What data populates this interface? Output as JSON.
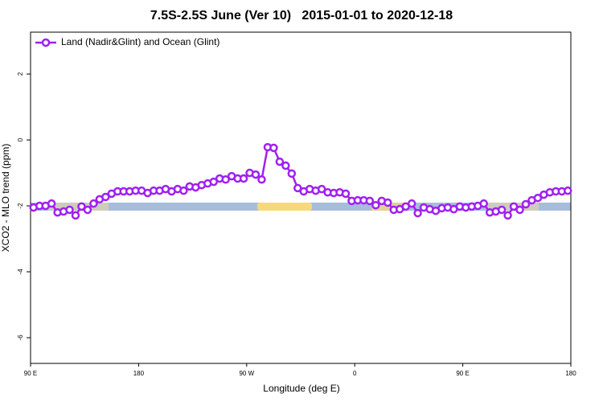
{
  "chart_data": {
    "type": "line",
    "title": "7.5S-2.5S June (Ver 10)   2015-01-01 to 2020-12-18",
    "x_label": "Longitude (deg E)",
    "y_label": "XCO2 - MLO trend (ppm)",
    "x": [
      92.5,
      97.5,
      102.5,
      107.5,
      112.5,
      117.5,
      122.5,
      127.5,
      132.5,
      137.5,
      142.5,
      147.5,
      152.5,
      157.5,
      162.5,
      167.5,
      172.5,
      177.5,
      182.5,
      187.5,
      192.5,
      197.5,
      202.5,
      207.5,
      212.5,
      217.5,
      222.5,
      227.5,
      232.5,
      237.5,
      242.5,
      247.5,
      252.5,
      257.5,
      262.5,
      267.5,
      272.5,
      277.5,
      282.5,
      287.5,
      292.5,
      297.5,
      302.5,
      307.5,
      312.5,
      317.5,
      322.5,
      327.5,
      332.5,
      337.5,
      342.5,
      347.5,
      352.5,
      357.5,
      362.5,
      367.5,
      372.5,
      377.5,
      382.5,
      387.5,
      392.5,
      397.5,
      402.5,
      407.5,
      412.5,
      417.5,
      422.5,
      427.5,
      432.5,
      437.5,
      442.5,
      447.5,
      452.5,
      457.5,
      462.5,
      467.5,
      472.5,
      477.5,
      482.5,
      487.5,
      492.5,
      497.5,
      502.5,
      507.5,
      512.5,
      517.5,
      522.5,
      527.5,
      532.5,
      537.5
    ],
    "series": [
      {
        "name": "Land (Nadir&Glint) and Ocean (Glint)",
        "color": "#a020f0",
        "values": [
          -2.05,
          -2.0,
          -2.0,
          -1.93,
          -2.2,
          -2.17,
          -2.12,
          -2.29,
          -2.02,
          -2.12,
          -1.93,
          -1.8,
          -1.73,
          -1.63,
          -1.56,
          -1.56,
          -1.56,
          -1.54,
          -1.54,
          -1.61,
          -1.54,
          -1.54,
          -1.49,
          -1.56,
          -1.49,
          -1.54,
          -1.41,
          -1.44,
          -1.37,
          -1.32,
          -1.27,
          -1.17,
          -1.2,
          -1.1,
          -1.17,
          -1.17,
          -1.0,
          -1.05,
          -1.2,
          -0.22,
          -0.24,
          -0.66,
          -0.78,
          -1.02,
          -1.46,
          -1.56,
          -1.49,
          -1.54,
          -1.49,
          -1.59,
          -1.61,
          -1.59,
          -1.63,
          -1.85,
          -1.83,
          -1.83,
          -1.85,
          -1.98,
          -1.85,
          -1.9,
          -2.12,
          -2.1,
          -2.02,
          -1.93,
          -2.22,
          -2.05,
          -2.1,
          -2.15,
          -2.07,
          -2.05,
          -2.1,
          -2.02,
          -2.05,
          -2.02,
          -2.0,
          -1.93,
          -2.2,
          -2.17,
          -2.12,
          -2.29,
          -2.02,
          -2.12,
          -1.95,
          -1.83,
          -1.76,
          -1.66,
          -1.59,
          -1.56,
          -1.56,
          -1.54
        ]
      }
    ],
    "xlim": [
      90,
      540
    ],
    "xticks": [
      {
        "value": 90,
        "label": "90 E"
      },
      180,
      {
        "value": 270,
        "label": "90 W"
      },
      {
        "value": 360,
        "label": "0"
      },
      {
        "value": 450,
        "label": "90 E"
      },
      {
        "value": 540,
        "label": "180"
      }
    ],
    "ylim": [
      -6.78,
      3.27
    ],
    "yticks": [
      -6,
      -4,
      -2,
      0,
      2
    ],
    "legend": "top-left",
    "grid": false
  }
}
